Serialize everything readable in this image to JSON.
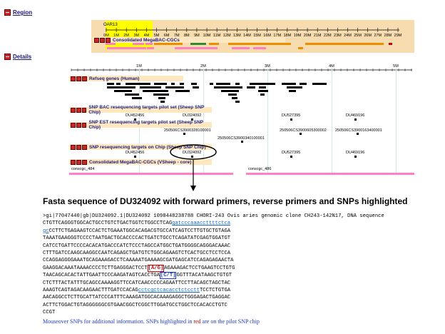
{
  "region": {
    "header": "Region",
    "chrom_label": "OAR13",
    "ticks": [
      "0M",
      "1M",
      "2M",
      "3M",
      "4M",
      "5M",
      "6M",
      "7M",
      "8M",
      "9M",
      "10M",
      "11M",
      "12M",
      "13M",
      "14M",
      "15M",
      "16M",
      "17M",
      "18M",
      "19M",
      "20M",
      "21M",
      "22M",
      "23M",
      "24M",
      "25M",
      "26M",
      "27M",
      "28M",
      "29M"
    ],
    "track_label": "Consolidated MegaBAC-CGCs"
  },
  "details": {
    "header": "Details",
    "ticks": [
      "1M",
      "2M",
      "3M",
      "4M",
      "5M"
    ],
    "tracks": {
      "refseq": "Refseq genes (Human)",
      "bac": "SNP BAC resequencing targets pilot set (Sheep SNP Chip)",
      "est": "SNP EST resequencing targets pilot set (Sheep SNP Chip)",
      "chip": "SNP resequencing targets on Chip (Sheep SNP Chip)",
      "cgc": "Consolidated MegaBAC-CGCs (VSheep - core)"
    },
    "bac_labels": [
      "DU452456",
      "DU324092",
      "DU527395",
      "DU469196"
    ],
    "est_labels": [
      "250506CS3900328100001",
      "250506CS3900340100001",
      "250506CS3900605300002",
      "250506CS3900163400001"
    ],
    "chip_labels": [
      "DU452456",
      "DU324092",
      "DU527395",
      "DU469196"
    ],
    "cgc_labels": [
      "conscgc_484",
      "conscgc_486"
    ]
  },
  "fasta": {
    "title": "Fasta sequence of DU324092 with forward primers, reverse primers and SNPs highlighted",
    "header_line": ">gi|77047440|gb|DU324092.1|DU324092 1098448238788 CHORI-243 Ovis aries genomic clone CH243-142N17, DNA sequence",
    "l1a": "CTGTTCAGGGTGGCACTGCCTGTCTGACTGGTCTGGCCTCAG",
    "l1b": "gatcccaaaccttttctca",
    "l2a": "gc",
    "l2b": "CCTTCTGAGAAGTCCACTCTGAAATGGCACAGACGTGCCATCAGTCCTTGTGCTGTAGA",
    "l3": "TAAATGAAGGGTCCCCTAATGACTGCACCCCACTGATCTGCCTCAGATATCGAGTGGATGT",
    "l4": "CATCCTGATTCCCCACACATGACCCATCTCCCTAGCCATGGCTGATGGGGCAGGGACAAAC",
    "l5": "CTTTGATCCAAGCAAGGCCAATCAGAGCTGATGTCTGGCAGAAGTCTCACTGCCTCCTCCA",
    "l6": "CCAGGAGGGGAAATGCAGAAAGACCTCAAAAATGAAAAGCGATGAGCATCCAGAGAGAACTA",
    "l7": "GAAGGACAAATAAAACCCCTCTTGAGGGACTCCT",
    "snp1": "[A/G]",
    "l7b": "AGAAAGACTCCTGAAGTCCTGTG",
    "l8": "TAACAGCACACTATTGAATTCCCAAGATAGTCACCTGA",
    "snp2": "[C/T]",
    "l8b": "GGTTTACATAAGCTGTGT",
    "l9": "CTCTTTACTATTTGCAGCCAAAAGGTTCCATCAACCCCCAGAATTCCTTACAGCTAGCTAC",
    "l10a": "AAAGTCAGTAGACAAGAACTTTGATCCACAG",
    "l10b": "cctcgctcacacctctcctt",
    "l10c": "TCCTCTGTGA",
    "l11": "AACAGGCCTCTTGCATTATCCCATTTCAAAGATGGCACAAAGAGGCTGGGAGACTGAGGAC",
    "l12": "ACTTCTGGACTGTAGGGGGGCGTGAACGGCTCGGCTTGGATGCCTGGCTCCACACCTGTC",
    "l13": "CCGT",
    "footer_a": "Mouseover SNPs for additional information. SNPs highlighted in ",
    "footer_red": "red",
    "footer_b": " are on the pilot SNP chip"
  }
}
